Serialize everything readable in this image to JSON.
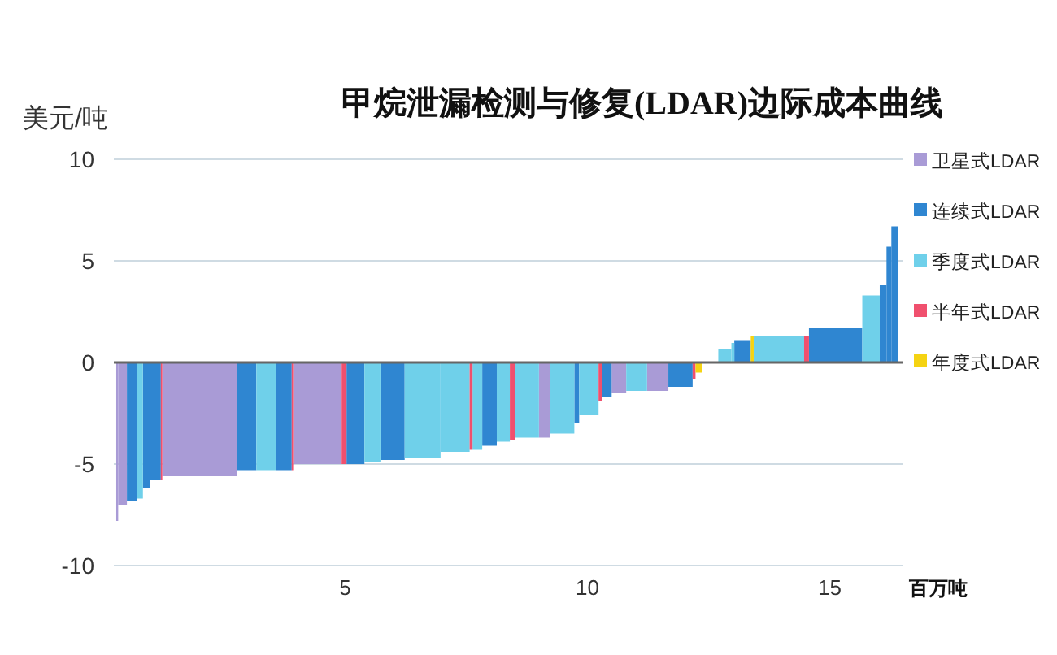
{
  "chart_data": {
    "type": "histogram",
    "title": "甲烷泄漏检测与修复(LDAR)边际成本曲线",
    "ylabel": "美元/吨",
    "xlabel": "百万吨",
    "bins": [
      0.28,
      0.32,
      0.5,
      0.7,
      0.83,
      0.97,
      1.2,
      1.23,
      2.77,
      3.17,
      3.57,
      3.9,
      3.93,
      4.93,
      5.03,
      5.4,
      5.73,
      6.23,
      6.97,
      7.57,
      7.63,
      7.83,
      8.13,
      8.4,
      8.5,
      9.0,
      9.23,
      9.73,
      9.83,
      10.23,
      10.3,
      10.5,
      10.8,
      11.23,
      11.67,
      12.17,
      12.23,
      12.37,
      12.7,
      12.97,
      13.03,
      13.37,
      13.43,
      14.47,
      14.57,
      15.67,
      16.03,
      16.17,
      16.27,
      16.4
    ],
    "series": [
      {
        "name": "卫星式LDAR",
        "color": "#a99bd6",
        "values": [
          -7.8,
          -7.0,
          null,
          null,
          null,
          null,
          null,
          -5.6,
          null,
          null,
          null,
          null,
          -5.0,
          null,
          null,
          null,
          null,
          null,
          null,
          null,
          null,
          null,
          null,
          null,
          null,
          -3.7,
          null,
          null,
          null,
          null,
          null,
          -1.5,
          null,
          -1.4,
          null,
          null,
          null,
          null,
          null,
          null,
          null,
          null,
          null,
          null,
          null,
          null,
          null,
          null,
          null
        ]
      },
      {
        "name": "连续式LDAR",
        "color": "#2f86d1",
        "values": [
          null,
          null,
          -6.8,
          null,
          -6.2,
          -5.8,
          null,
          null,
          -5.3,
          null,
          -5.3,
          null,
          null,
          null,
          -5.0,
          null,
          -4.8,
          null,
          null,
          null,
          null,
          -4.1,
          null,
          null,
          null,
          null,
          null,
          -3.0,
          null,
          null,
          -1.7,
          null,
          null,
          null,
          -1.2,
          null,
          null,
          null,
          null,
          null,
          1.1,
          null,
          null,
          null,
          1.7,
          null,
          3.8,
          5.7,
          6.7
        ]
      },
      {
        "name": "季度式LDAR",
        "color": "#6fd0ea",
        "values": [
          null,
          null,
          null,
          -6.7,
          null,
          null,
          null,
          null,
          null,
          -5.3,
          null,
          null,
          null,
          null,
          null,
          -4.9,
          null,
          -4.7,
          -4.4,
          null,
          -4.3,
          null,
          -3.9,
          null,
          -3.7,
          null,
          -3.5,
          null,
          -2.6,
          null,
          null,
          null,
          -1.4,
          null,
          null,
          null,
          null,
          null,
          0.65,
          0.96,
          null,
          null,
          1.3,
          null,
          null,
          3.3,
          null,
          null,
          null
        ]
      },
      {
        "name": "半年式LDAR",
        "color": "#f0506e",
        "values": [
          null,
          null,
          null,
          null,
          null,
          null,
          -5.8,
          null,
          null,
          null,
          null,
          -5.3,
          null,
          -5.0,
          null,
          null,
          null,
          null,
          null,
          -4.3,
          null,
          null,
          null,
          -3.8,
          null,
          null,
          null,
          null,
          null,
          -1.9,
          null,
          null,
          null,
          null,
          null,
          -0.8,
          null,
          null,
          null,
          null,
          null,
          null,
          null,
          1.3,
          null,
          null,
          null,
          null,
          null
        ]
      },
      {
        "name": "年度式LDAR",
        "color": "#f5d312",
        "values": [
          null,
          null,
          null,
          null,
          null,
          null,
          null,
          null,
          null,
          null,
          null,
          null,
          null,
          null,
          null,
          null,
          null,
          null,
          null,
          null,
          null,
          null,
          null,
          null,
          null,
          null,
          null,
          null,
          null,
          null,
          null,
          null,
          null,
          null,
          null,
          null,
          -0.5,
          null,
          null,
          null,
          null,
          1.3,
          null,
          null,
          null,
          null,
          null,
          null,
          null
        ]
      }
    ],
    "xlim": [
      0.23,
      16.5
    ],
    "ylim": [
      -10,
      10
    ],
    "xticks": [
      5,
      10,
      15
    ],
    "yticks": [
      -10,
      -5,
      0,
      5,
      10
    ],
    "grid": "y",
    "legend": "right"
  }
}
